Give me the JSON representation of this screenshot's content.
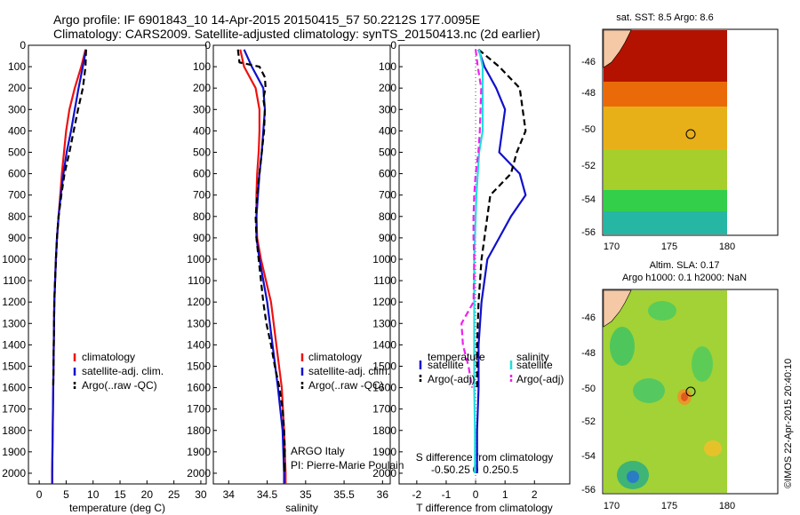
{
  "header": {
    "line1": "Argo profile: IF 6901843_10 14-Apr-2015 20150415_57 50.2212S 177.0095E",
    "line2": "Climatology: CARS2009. Satellite-adjusted climatology: synTS_20150413.nc (2d earlier)"
  },
  "depth_ticks": [
    "0",
    "100",
    "200",
    "300",
    "400",
    "500",
    "600",
    "700",
    "800",
    "900",
    "1000",
    "1100",
    "1200",
    "1300",
    "1400",
    "1500",
    "1600",
    "1700",
    "1800",
    "1900",
    "2000"
  ],
  "legend_profiles": [
    "climatology",
    "satellite-adj. clim.",
    "Argo(..raw -QC)"
  ],
  "legend_diff": {
    "temp_title": "temperature",
    "temp_items": [
      "satellite",
      "Argo(-adj)"
    ],
    "sal_title": "salinity",
    "sal_items": [
      "satellite",
      "Argo(-adj)"
    ]
  },
  "info": {
    "line1": "ARGO Italy",
    "line2": "PI: Pierre-Marie Poulain"
  },
  "map_sst": {
    "title": "sat. SST: 8.5 Argo: 8.6",
    "xticks": [
      "170",
      "175",
      "180"
    ],
    "yticks": [
      "-46",
      "-48",
      "-50",
      "-52",
      "-54",
      "-56"
    ]
  },
  "map_sla": {
    "title1": "Altim. SLA: 0.17",
    "title2": "Argo h1000: 0.1 h2000: NaN",
    "xticks": [
      "170",
      "175",
      "180"
    ],
    "yticks": [
      "-46",
      "-48",
      "-50",
      "-52",
      "-54",
      "-56"
    ]
  },
  "watermark": "©IMOS 22-Apr-2015 20:40:10",
  "colors": {
    "climatology": "#ee1111",
    "satellite": "#1010cc",
    "argo": "#000000",
    "sal_satellite": "#22dddd",
    "sal_argo": "#ee22ee"
  },
  "chart_data": [
    {
      "type": "line",
      "xlabel": "temperature (deg C)",
      "ylabel": "",
      "xticks": [
        "0",
        "5",
        "10",
        "15",
        "20",
        "25",
        "30"
      ],
      "xlim": [
        -2,
        31
      ],
      "ylim": [
        2050,
        0
      ],
      "series": [
        {
          "name": "climatology",
          "depth": [
            20,
            100,
            200,
            300,
            400,
            500,
            600,
            700,
            800,
            900,
            1000,
            1200,
            1400,
            1600,
            1800,
            2000,
            2050
          ],
          "values": [
            8.6,
            7.8,
            6.6,
            5.6,
            5.0,
            4.6,
            4.2,
            3.9,
            3.6,
            3.3,
            3.1,
            2.8,
            2.7,
            2.6,
            2.5,
            2.4,
            2.4
          ]
        },
        {
          "name": "satellite-adj. clim.",
          "depth": [
            20,
            100,
            200,
            300,
            400,
            500,
            600,
            700,
            800,
            900,
            1000,
            1200,
            1400,
            1600,
            1800,
            2000,
            2050
          ],
          "values": [
            8.7,
            8.1,
            7.3,
            6.6,
            5.9,
            5.1,
            4.5,
            4.0,
            3.6,
            3.3,
            3.1,
            2.8,
            2.7,
            2.6,
            2.5,
            2.4,
            2.4
          ]
        },
        {
          "name": "Argo(..raw -QC)",
          "depth": [
            20,
            100,
            200,
            300,
            400,
            500,
            600,
            700,
            800,
            900,
            1000,
            1200,
            1400,
            1600
          ],
          "values": [
            8.7,
            8.6,
            8.1,
            7.2,
            6.4,
            5.6,
            4.7,
            4.1,
            3.6,
            3.3,
            3.1,
            2.8,
            2.7,
            2.6
          ]
        }
      ]
    },
    {
      "type": "line",
      "xlabel": "salinity",
      "ylabel": "",
      "xticks": [
        "34",
        "34.5",
        "35",
        "35.5",
        "36"
      ],
      "xlim": [
        33.8,
        36.1
      ],
      "ylim": [
        2050,
        0
      ],
      "series": [
        {
          "name": "climatology",
          "depth": [
            20,
            100,
            200,
            300,
            400,
            500,
            600,
            700,
            800,
            900,
            1000,
            1200,
            1400,
            1600,
            1800,
            2000,
            2050
          ],
          "values": [
            34.15,
            34.2,
            34.35,
            34.4,
            34.4,
            34.39,
            34.37,
            34.36,
            34.36,
            34.37,
            34.42,
            34.55,
            34.62,
            34.69,
            34.72,
            34.74,
            34.74
          ]
        },
        {
          "name": "satellite-adj. clim.",
          "depth": [
            20,
            100,
            200,
            300,
            400,
            500,
            600,
            700,
            800,
            900,
            1000,
            1200,
            1400,
            1600,
            1800,
            2000,
            2050
          ],
          "values": [
            34.2,
            34.3,
            34.45,
            34.47,
            34.45,
            34.43,
            34.4,
            34.38,
            34.36,
            34.36,
            34.4,
            34.5,
            34.57,
            34.64,
            34.7,
            34.72,
            34.72
          ]
        },
        {
          "name": "Argo(..raw -QC)",
          "depth": [
            20,
            80,
            100,
            150,
            200,
            250,
            300,
            400,
            500,
            600,
            700,
            800,
            900,
            1000,
            1100,
            1200,
            1300,
            1400,
            1500,
            1600,
            1700,
            1800,
            1900
          ],
          "values": [
            34.12,
            34.14,
            34.4,
            34.47,
            34.48,
            34.45,
            34.47,
            34.46,
            34.43,
            34.4,
            34.37,
            34.35,
            34.36,
            34.39,
            34.42,
            34.45,
            34.49,
            34.55,
            34.6,
            34.66,
            34.7,
            34.72,
            34.73
          ]
        }
      ]
    },
    {
      "type": "line",
      "xlabel": "T difference from climatology",
      "ylabel": "",
      "xticks": [
        "-2",
        "-1",
        "0",
        "1",
        "2"
      ],
      "xlim": [
        -2.6,
        3.2
      ],
      "ylim": [
        2050,
        0
      ],
      "top_label": "S difference from climatology",
      "top_ticks": [
        "-0.5",
        "-0.25",
        "0",
        "0.25",
        "0.5"
      ],
      "top_values": [
        -0.5,
        -0.25,
        0,
        0.25,
        0.5
      ],
      "series": [
        {
          "name": "temperature satellite",
          "depth": [
            20,
            100,
            200,
            300,
            400,
            500,
            600,
            700,
            800,
            900,
            1000,
            1200,
            1400,
            1600,
            1800,
            2000
          ],
          "values": [
            0.1,
            0.3,
            0.7,
            1.0,
            0.9,
            0.8,
            1.5,
            1.7,
            1.2,
            0.8,
            0.4,
            0.2,
            0.1,
            0.1,
            0.05,
            0.05
          ]
        },
        {
          "name": "temperature Argo(-adj)",
          "depth": [
            20,
            100,
            200,
            300,
            400,
            500,
            600,
            700,
            800,
            900,
            1000,
            1200,
            1400,
            1600
          ],
          "values": [
            0.1,
            0.8,
            1.5,
            1.6,
            1.7,
            1.4,
            1.2,
            0.5,
            0.4,
            0.3,
            0.2,
            0.1,
            0.05,
            0.05
          ]
        },
        {
          "name": "salinity satellite",
          "depth": [
            20,
            100,
            200,
            300,
            400,
            500,
            600,
            700,
            800,
            900,
            1000,
            1200,
            1400,
            1600,
            1800,
            2000
          ],
          "values": [
            0.05,
            0.1,
            0.1,
            0.1,
            0.1,
            0.05,
            0.03,
            0.01,
            0.0,
            -0.01,
            -0.02,
            -0.02,
            -0.02,
            -0.02,
            -0.01,
            -0.01
          ]
        },
        {
          "name": "salinity Argo(-adj)",
          "depth": [
            20,
            100,
            200,
            300,
            400,
            500,
            600,
            700,
            800,
            900,
            1000,
            1200,
            1300,
            1400,
            1500,
            1600
          ],
          "values": [
            0.0,
            0.03,
            0.08,
            0.07,
            0.06,
            0.04,
            0.0,
            -0.02,
            -0.03,
            -0.03,
            -0.02,
            -0.03,
            -0.2,
            -0.18,
            -0.1,
            -0.05
          ]
        }
      ]
    }
  ]
}
